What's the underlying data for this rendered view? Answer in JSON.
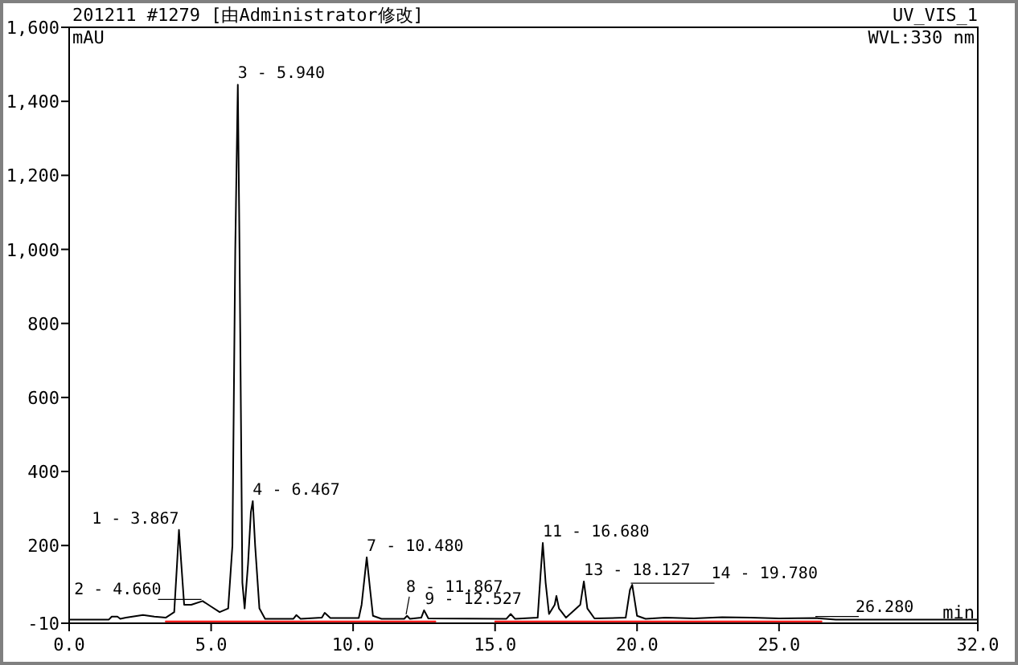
{
  "chart_data": {
    "type": "line",
    "title": "201211 #1279 [由Administrator修改]",
    "subtitle": "UV_VIS_1",
    "xlabel": "min",
    "ylabel": "mAU",
    "xlim": [
      0,
      32
    ],
    "ylim": [
      -10,
      1600
    ],
    "xticks": [
      {
        "value": 0,
        "label": "0.0"
      },
      {
        "value": 5,
        "label": "5.0"
      },
      {
        "value": 10,
        "label": "10.0"
      },
      {
        "value": 15,
        "label": "15.0"
      },
      {
        "value": 20,
        "label": "20.0"
      },
      {
        "value": 25,
        "label": "25.0"
      },
      {
        "value": 32,
        "label": "32.0"
      }
    ],
    "yticks": [
      -10,
      200,
      400,
      600,
      800,
      {
        "value": 1000,
        "label": "1,000"
      },
      {
        "value": 1200,
        "label": "1,200"
      },
      {
        "value": 1400,
        "label": "1,400"
      },
      {
        "value": 1600,
        "label": "1,600"
      }
    ],
    "grid": false,
    "marker": "none",
    "line_style": "solid",
    "series": [
      {
        "color": "#000000",
        "x": [
          0,
          1.4,
          1.5,
          1.7,
          1.8,
          2.0,
          2.6,
          3.0,
          3.4,
          3.7,
          3.8,
          3.867,
          3.95,
          4.05,
          4.3,
          4.7,
          5.0,
          5.3,
          5.6,
          5.75,
          5.85,
          5.94,
          6.0,
          6.1,
          6.18,
          6.3,
          6.4,
          6.467,
          6.55,
          6.7,
          6.9,
          7.9,
          8.0,
          8.15,
          8.9,
          9.0,
          9.2,
          10.2,
          10.3,
          10.48,
          10.6,
          10.7,
          11.0,
          11.8,
          11.9,
          12.0,
          12.4,
          12.5,
          12.65,
          15.4,
          15.55,
          15.7,
          16.5,
          16.6,
          16.68,
          16.78,
          16.9,
          17.1,
          17.16,
          17.25,
          17.5,
          18.0,
          18.127,
          18.25,
          18.5,
          19.6,
          19.75,
          19.83,
          20.0,
          20.3,
          21.0,
          22.0,
          23.0,
          24.0,
          25.0,
          26.3,
          27,
          32
        ],
        "values": [
          0,
          0,
          8,
          8,
          2,
          5,
          12,
          8,
          5,
          20,
          150,
          242,
          150,
          40,
          40,
          50,
          35,
          20,
          30,
          200,
          1000,
          1445,
          1000,
          100,
          30,
          150,
          290,
          320,
          200,
          30,
          2,
          2,
          12,
          2,
          5,
          18,
          4,
          4,
          40,
          168,
          80,
          10,
          2,
          2,
          10,
          2,
          5,
          25,
          3,
          2,
          15,
          2,
          5,
          120,
          207,
          100,
          15,
          40,
          64,
          30,
          5,
          40,
          103,
          30,
          3,
          5,
          80,
          94,
          10,
          2,
          5,
          3,
          6,
          5,
          3,
          4,
          0,
          0
        ]
      },
      {
        "color": "#ff0000",
        "x": [
          3.4,
          12.9
        ],
        "values": [
          -5,
          -5
        ]
      },
      {
        "color": "#ff0000",
        "x": [
          15.0,
          26.5
        ],
        "values": [
          -5,
          -5
        ]
      }
    ],
    "annotations": [
      "WVL:330 nm",
      {
        "text": "1 - 3.867",
        "x": 3.867,
        "y": 242
      },
      {
        "text": "2 - 4.660",
        "x": 4.66,
        "y": 50
      },
      {
        "text": "3 - 5.940",
        "x": 5.94,
        "y": 1445
      },
      {
        "text": "4 - 6.467",
        "x": 6.467,
        "y": 320
      },
      {
        "text": "7 - 10.480",
        "x": 10.48,
        "y": 168
      },
      {
        "text": "8 - 11.867",
        "x": 11.867,
        "y": 10
      },
      {
        "text": "9 - 12.527",
        "x": 12.527,
        "y": 25
      },
      {
        "text": "11 - 16.680",
        "x": 16.68,
        "y": 207
      },
      {
        "text": "13 - 18.127",
        "x": 18.127,
        "y": 103
      },
      {
        "text": "14 - 19.780",
        "x": 19.78,
        "y": 94
      },
      {
        "text": "26.280",
        "x": 26.28,
        "y": 4
      }
    ]
  }
}
